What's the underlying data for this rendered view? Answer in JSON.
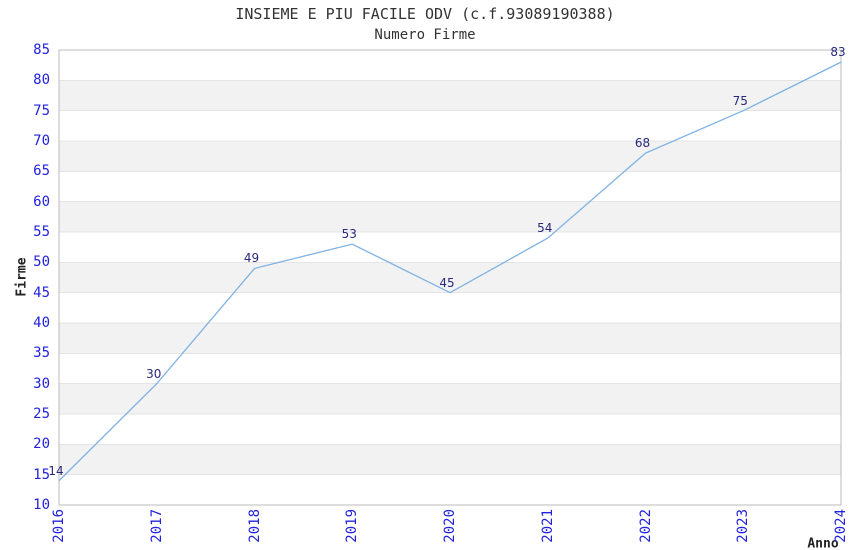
{
  "chart_data": {
    "type": "line",
    "title": "INSIEME E PIU FACILE ODV (c.f.93089190388)",
    "subtitle": "Numero Firme",
    "xlabel": "Anno",
    "ylabel": "Firme",
    "categories": [
      "2016",
      "2017",
      "2018",
      "2019",
      "2020",
      "2021",
      "2022",
      "2023",
      "2024"
    ],
    "series": [
      {
        "name": "Numero Firme",
        "values": [
          14,
          30,
          49,
          53,
          45,
          54,
          68,
          75,
          83
        ]
      }
    ],
    "ylim": [
      10,
      85
    ],
    "ytick_step": 5,
    "grid": "horizontal-alternating-bands",
    "legend": "none",
    "colors": {
      "line": "#7FB2E4",
      "tick_label": "#2222DD",
      "value_label": "#28287E",
      "band_gray": "#F2F2F2",
      "band_white": "#FFFFFF",
      "band_line": "#E4E4E4",
      "plot_border": "#BBBBBB",
      "title_text": "#333333",
      "background": "#FFFFFF"
    }
  }
}
